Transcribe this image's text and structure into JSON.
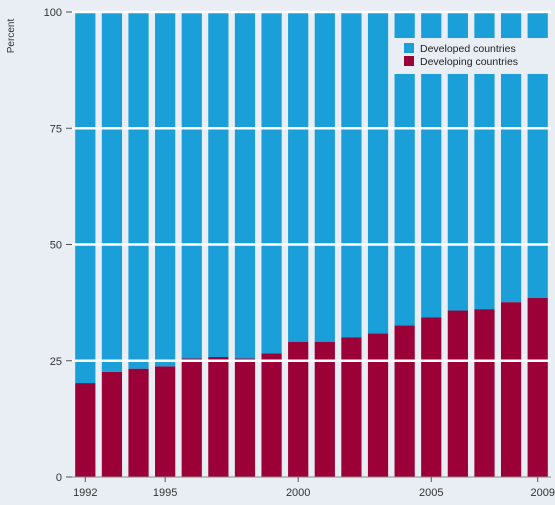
{
  "chart_data": {
    "type": "bar",
    "stacked": true,
    "ylabel": "Percent",
    "ylim": [
      0,
      100
    ],
    "yticks": [
      0,
      25,
      50,
      75,
      100
    ],
    "x_tick_labels": [
      "1992",
      "1995",
      "2000",
      "2005",
      "2009"
    ],
    "categories": [
      "1992",
      "1993",
      "1994",
      "1995",
      "1996",
      "1997",
      "1998",
      "1999",
      "2000",
      "2001",
      "2002",
      "2003",
      "2004",
      "2005",
      "2006",
      "2007",
      "2008",
      "2009"
    ],
    "series": [
      {
        "name": "Developing countries",
        "color": "#9b0036",
        "values": [
          20.2,
          22.6,
          23.3,
          23.8,
          25.5,
          25.8,
          25.5,
          26.6,
          29.1,
          29.1,
          30.0,
          30.9,
          32.6,
          34.3,
          35.8,
          36.1,
          37.6,
          38.5
        ]
      },
      {
        "name": "Developed countries",
        "color": "#1a9fd9",
        "values": [
          79.8,
          77.4,
          76.7,
          76.2,
          74.5,
          74.2,
          74.5,
          73.4,
          70.9,
          70.9,
          70.0,
          69.1,
          67.4,
          65.7,
          64.2,
          63.9,
          62.4,
          61.5
        ]
      }
    ],
    "legend": {
      "placement": "top-right",
      "entries": [
        "Developed countries",
        "Developing countries"
      ]
    },
    "grid": "horizontal"
  }
}
